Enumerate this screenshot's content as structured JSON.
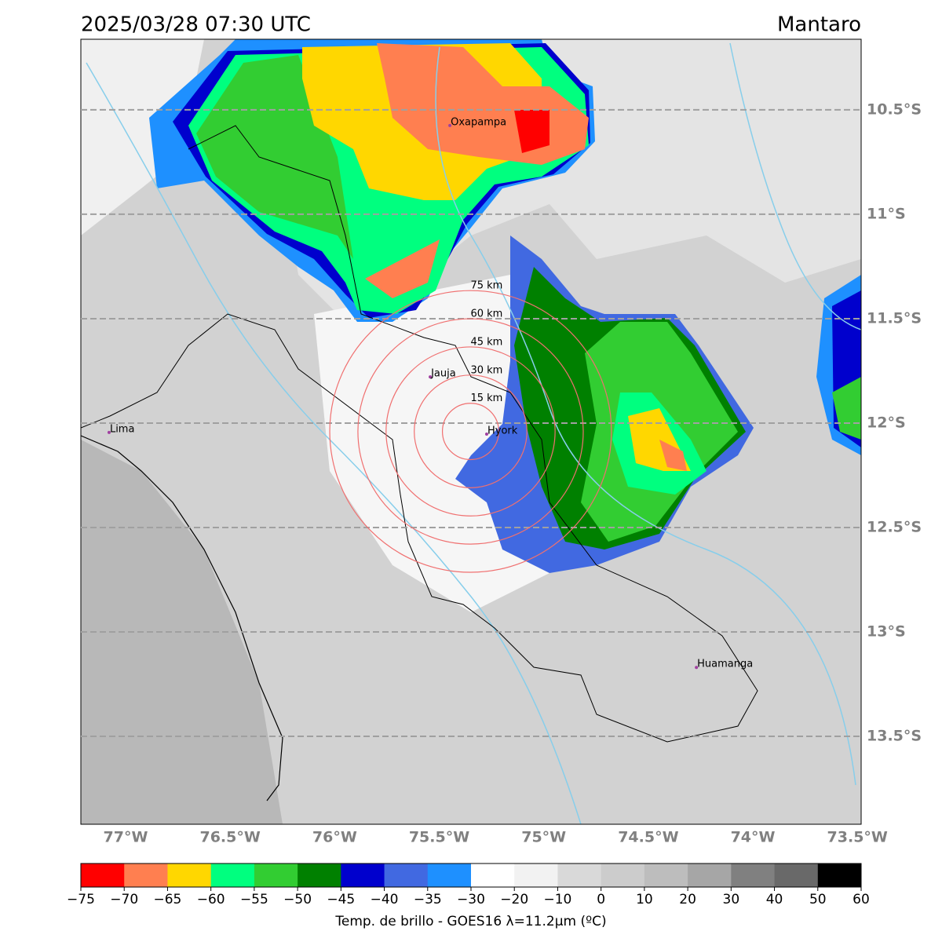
{
  "title_left": "2025/03/28 07:30 UTC",
  "title_right": "Mantaro",
  "map": {
    "xlim": [
      -77.214,
      -73.482
    ],
    "ylim": [
      -13.921,
      -10.162
    ],
    "lat_ticks": [
      {
        "value": -10.5,
        "label": "10.5°S"
      },
      {
        "value": -11,
        "label": "11°S"
      },
      {
        "value": -11.5,
        "label": "11.5°S"
      },
      {
        "value": -12,
        "label": "12°S"
      },
      {
        "value": -12.5,
        "label": "12.5°S"
      },
      {
        "value": -13,
        "label": "13°S"
      },
      {
        "value": -13.5,
        "label": "13.5°S"
      }
    ],
    "lon_ticks": [
      {
        "value": -77,
        "label": "77°W"
      },
      {
        "value": -76.5,
        "label": "76.5°W"
      },
      {
        "value": -76,
        "label": "76°W"
      },
      {
        "value": -75.5,
        "label": "75.5°W"
      },
      {
        "value": -75,
        "label": "75°W"
      },
      {
        "value": -74.5,
        "label": "74.5°W"
      },
      {
        "value": -74,
        "label": "74°W"
      },
      {
        "value": -73.5,
        "label": "73.5°W"
      }
    ],
    "cities": [
      {
        "name": "Oxapampa",
        "lon": -75.449,
        "lat": -10.575
      },
      {
        "name": "Jauja",
        "lon": -75.543,
        "lat": -11.779
      },
      {
        "name": "Lima",
        "lon": -77.079,
        "lat": -12.045
      },
      {
        "name": "Hyork",
        "lon": -75.273,
        "lat": -12.053
      },
      {
        "name": "Huamanga",
        "lon": -74.27,
        "lat": -13.17
      }
    ],
    "rings": {
      "center_lon": -75.35,
      "center_lat": -12.04,
      "radii": [
        {
          "value": 15,
          "label": "15 km"
        },
        {
          "value": 30,
          "label": "30 km"
        },
        {
          "value": 45,
          "label": "45 km"
        },
        {
          "value": 60,
          "label": "60 km"
        },
        {
          "value": 75,
          "label": "75 km"
        }
      ]
    }
  },
  "colorbar": {
    "label": "Temp. de brillo - GOES16 λ=11.2μm (ºC)",
    "ticks": [
      {
        "value": -75,
        "label": "−75"
      },
      {
        "value": -70,
        "label": "−70"
      },
      {
        "value": -65,
        "label": "−65"
      },
      {
        "value": -60,
        "label": "−60"
      },
      {
        "value": -55,
        "label": "−55"
      },
      {
        "value": -50,
        "label": "−50"
      },
      {
        "value": -45,
        "label": "−45"
      },
      {
        "value": -40,
        "label": "−40"
      },
      {
        "value": -35,
        "label": "−35"
      },
      {
        "value": -30,
        "label": "−30"
      },
      {
        "value": -20,
        "label": "−20"
      },
      {
        "value": -10,
        "label": "−10"
      },
      0,
      10,
      20,
      30,
      40,
      50,
      60
    ],
    "colors": [
      "#ff0000",
      "#ff7f50",
      "#ffd700",
      "#00ff7f",
      "#32cd32",
      "#008000",
      "#0000cd",
      "#4169e1",
      "#1e90ff",
      "#ffffff",
      "#f2f2f2",
      "#d9d9d9",
      "#cccccc",
      "#bdbdbd",
      "#a6a6a6",
      "#808080",
      "#696969",
      "#000000"
    ]
  }
}
